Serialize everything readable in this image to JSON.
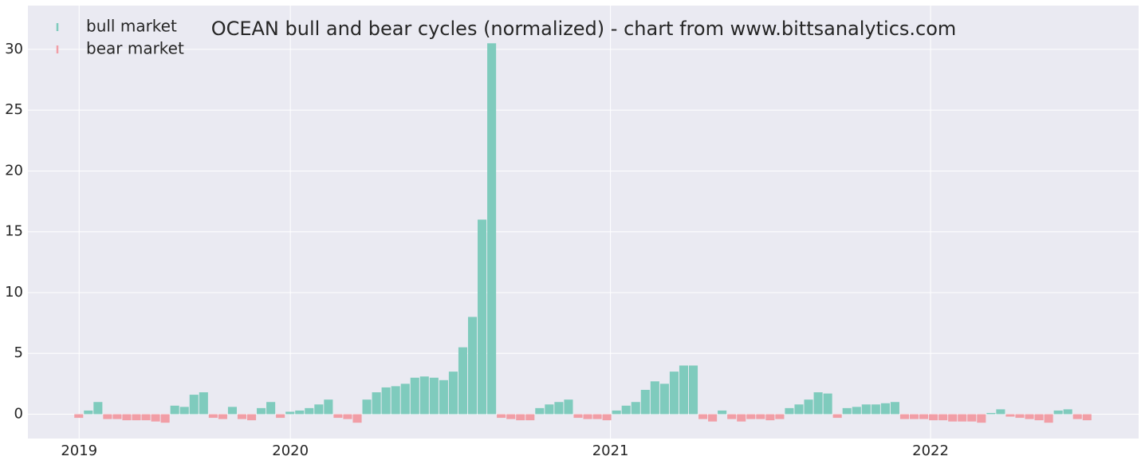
{
  "chart_data": {
    "type": "bar",
    "title": "OCEAN bull and bear cycles (normalized)  - chart from www.bittsanalytics.com",
    "x": [
      2019.34,
      2019.37,
      2019.4,
      2019.43,
      2019.46,
      2019.49,
      2019.52,
      2019.55,
      2019.58,
      2019.61,
      2019.64,
      2019.67,
      2019.7,
      2019.73,
      2019.76,
      2019.79,
      2019.82,
      2019.85,
      2019.88,
      2019.91,
      2019.94,
      2019.97,
      2020,
      2020.03,
      2020.06,
      2020.09,
      2020.12,
      2020.15,
      2020.18,
      2020.21,
      2020.24,
      2020.27,
      2020.3,
      2020.33,
      2020.36,
      2020.39,
      2020.42,
      2020.45,
      2020.48,
      2020.51,
      2020.54,
      2020.57,
      2020.6,
      2020.63,
      2020.66,
      2020.69,
      2020.72,
      2020.75,
      2020.78,
      2020.81,
      2020.84,
      2020.87,
      2020.9,
      2020.93,
      2020.96,
      2020.99,
      2021.02,
      2021.05,
      2021.08,
      2021.11,
      2021.14,
      2021.17,
      2021.2,
      2021.23,
      2021.26,
      2021.29,
      2021.32,
      2021.35,
      2021.38,
      2021.41,
      2021.44,
      2021.47,
      2021.5,
      2021.53,
      2021.56,
      2021.59,
      2021.62,
      2021.65,
      2021.68,
      2021.71,
      2021.74,
      2021.77,
      2021.8,
      2021.83,
      2021.86,
      2021.89,
      2021.92,
      2021.95,
      2021.98,
      2022.01,
      2022.04,
      2022.07,
      2022.1,
      2022.13,
      2022.16,
      2022.19,
      2022.22,
      2022.25,
      2022.28,
      2022.31,
      2022.34,
      2022.37,
      2022.4,
      2022.43,
      2022.46,
      2022.49
    ],
    "bar_width": 0.03,
    "series": [
      {
        "name": "bull market",
        "color": "#7fcbbd",
        "values": [
          null,
          0.3,
          1.0,
          null,
          null,
          null,
          null,
          null,
          null,
          null,
          0.7,
          0.6,
          1.6,
          1.8,
          null,
          null,
          0.6,
          null,
          null,
          0.5,
          1.0,
          null,
          0.2,
          0.3,
          0.5,
          0.8,
          1.2,
          null,
          null,
          null,
          1.2,
          1.8,
          2.2,
          2.3,
          2.5,
          3.0,
          3.1,
          3.0,
          2.8,
          3.5,
          5.5,
          8.0,
          16.0,
          30.5,
          null,
          null,
          null,
          null,
          0.5,
          0.8,
          1.0,
          1.2,
          null,
          null,
          null,
          null,
          0.3,
          0.7,
          1.0,
          2.0,
          2.7,
          2.5,
          3.5,
          4.0,
          4.0,
          null,
          null,
          0.3,
          null,
          null,
          null,
          null,
          null,
          null,
          0.5,
          0.8,
          1.2,
          1.8,
          1.7,
          null,
          0.5,
          0.6,
          0.8,
          0.8,
          0.9,
          1.0,
          null,
          null,
          null,
          null,
          null,
          null,
          null,
          null,
          null,
          0.1,
          0.4,
          null,
          null,
          null,
          null,
          null,
          0.3,
          0.4,
          null,
          null
        ]
      },
      {
        "name": "bear market",
        "color": "#f19ea6",
        "values": [
          -0.3,
          null,
          null,
          -0.4,
          -0.4,
          -0.5,
          -0.5,
          -0.5,
          -0.6,
          -0.7,
          null,
          null,
          null,
          null,
          -0.3,
          -0.4,
          null,
          -0.4,
          -0.5,
          null,
          null,
          -0.3,
          null,
          null,
          null,
          null,
          null,
          -0.3,
          -0.4,
          -0.7,
          null,
          null,
          null,
          null,
          null,
          null,
          null,
          null,
          null,
          null,
          null,
          null,
          null,
          null,
          -0.3,
          -0.4,
          -0.5,
          -0.5,
          null,
          null,
          null,
          null,
          -0.3,
          -0.4,
          -0.4,
          -0.5,
          null,
          null,
          null,
          null,
          null,
          null,
          null,
          null,
          null,
          -0.4,
          -0.6,
          null,
          -0.4,
          -0.6,
          -0.4,
          -0.4,
          -0.5,
          -0.4,
          null,
          null,
          null,
          null,
          null,
          -0.3,
          null,
          null,
          null,
          null,
          null,
          null,
          -0.4,
          -0.4,
          -0.4,
          -0.5,
          -0.5,
          -0.6,
          -0.6,
          -0.6,
          -0.7,
          null,
          null,
          -0.2,
          -0.3,
          -0.4,
          -0.5,
          -0.7,
          null,
          null,
          -0.4,
          -0.5
        ]
      }
    ],
    "xlim": [
      2019.18,
      2022.65
    ],
    "xticks": [
      {
        "value": 2019.34,
        "label": "2019"
      },
      2020,
      2021,
      2022
    ],
    "ylim": [
      -2,
      33.6
    ],
    "yticks": [
      0,
      5,
      10,
      15,
      20,
      25,
      30
    ],
    "grid": true,
    "legend": "upper left"
  }
}
